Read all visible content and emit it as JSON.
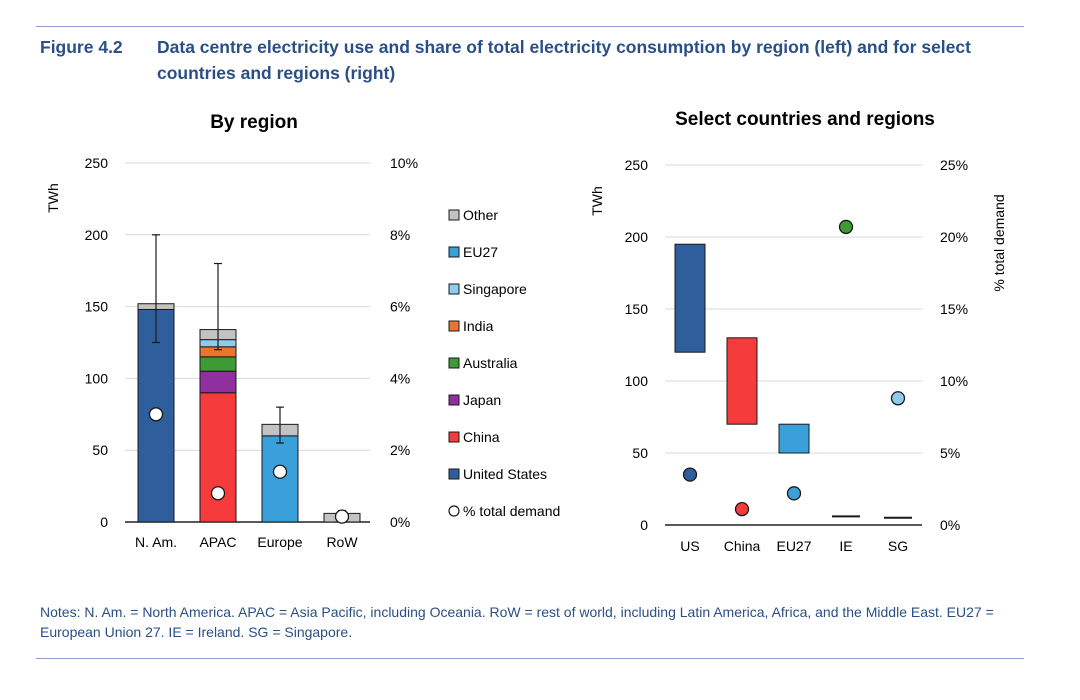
{
  "figure": {
    "number": "Figure 4.2",
    "title": "Data centre electricity use and share of total electricity consumption by region (left) and for select countries and regions (right)",
    "notes": "Notes: N. Am. = North America. APAC = Asia Pacific, including Oceania. RoW = rest of world, including Latin America, Africa, and the Middle East. EU27 = European Union 27. IE = Ireland. SG = Singapore."
  },
  "chart_data": [
    {
      "type": "bar",
      "title": "By region",
      "ylabel": "TWh",
      "ylim": [
        0,
        250
      ],
      "yticks": [
        "250",
        "200",
        "150",
        "100",
        "50",
        "0"
      ],
      "y2lim": [
        0,
        10
      ],
      "y2ticks": [
        "10%",
        "8%",
        "6%",
        "4%",
        "2%",
        "0%"
      ],
      "categories": [
        "N. Am.",
        "APAC",
        "Europe",
        "RoW"
      ],
      "series": [
        {
          "name": "United States",
          "color": "#2e5e9c",
          "values": [
            148,
            0,
            0,
            0
          ]
        },
        {
          "name": "China",
          "color": "#f53b3b",
          "values": [
            0,
            90,
            0,
            0
          ]
        },
        {
          "name": "Japan",
          "color": "#922f9f",
          "values": [
            0,
            15,
            0,
            0
          ]
        },
        {
          "name": "Australia",
          "color": "#3d9a35",
          "values": [
            0,
            10,
            0,
            0
          ]
        },
        {
          "name": "India",
          "color": "#ea7430",
          "values": [
            0,
            7,
            0,
            0
          ]
        },
        {
          "name": "Singapore",
          "color": "#8fcbea",
          "values": [
            0,
            5,
            0,
            0
          ]
        },
        {
          "name": "EU27",
          "color": "#3aa0da",
          "values": [
            0,
            0,
            60,
            0
          ]
        },
        {
          "name": "Other",
          "color": "#c3c3c3",
          "values": [
            4,
            7,
            8,
            6
          ]
        }
      ],
      "error_bars": [
        {
          "category": "N. Am.",
          "low": 125,
          "high": 200
        },
        {
          "category": "APAC",
          "low": 120,
          "high": 180
        },
        {
          "category": "Europe",
          "low": 55,
          "high": 80
        },
        {
          "category": "RoW",
          "low": 4,
          "high": 8
        }
      ],
      "pct_total_demand": {
        "name": "% total demand",
        "values": [
          3.0,
          0.8,
          1.4,
          0.15
        ]
      },
      "legend": [
        "Other",
        "EU27",
        "Singapore",
        "India",
        "Australia",
        "Japan",
        "China",
        "United States",
        "% total demand"
      ],
      "legend_position": "right"
    },
    {
      "type": "range-bar",
      "title": "Select countries and regions",
      "ylabel": "TWh",
      "y2label": "% total demand",
      "ylim": [
        0,
        250
      ],
      "yticks": [
        "250",
        "200",
        "150",
        "100",
        "50",
        "0"
      ],
      "y2lim": [
        0,
        25
      ],
      "y2ticks": [
        "25%",
        "20%",
        "15%",
        "10%",
        "5%",
        "0%"
      ],
      "categories": [
        "US",
        "China",
        "EU27",
        "IE",
        "SG"
      ],
      "colors": [
        "#2e5e9c",
        "#f53b3b",
        "#3aa0da",
        "#3d9a35",
        "#8fcbea"
      ],
      "ranges": [
        {
          "low": 120,
          "high": 195
        },
        {
          "low": 70,
          "high": 130
        },
        {
          "low": 50,
          "high": 70
        },
        {
          "low": 6,
          "high": 6
        },
        {
          "low": 5,
          "high": 5
        }
      ],
      "pct_total_demand": [
        3.5,
        1.1,
        2.2,
        20.7,
        8.8
      ]
    }
  ]
}
